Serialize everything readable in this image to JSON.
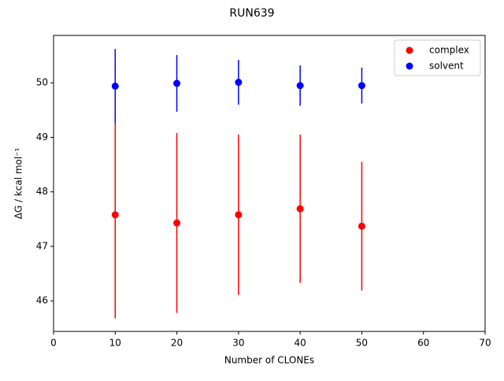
{
  "chart_data": {
    "type": "errorbar-scatter",
    "title": "RUN639",
    "xlabel": "Number of CLONEs",
    "ylabel": "ΔG / kcal mol⁻¹",
    "xlim": [
      0,
      70
    ],
    "xticks": [
      0,
      10,
      20,
      30,
      40,
      50,
      60,
      70
    ],
    "ylim": [
      45.44,
      50.87
    ],
    "yticks": [
      46,
      47,
      48,
      49,
      50
    ],
    "legend": "upper right",
    "series": [
      {
        "name": "complex",
        "color": "#ff0000",
        "x": [
          10,
          20,
          30,
          40,
          50
        ],
        "values": [
          47.58,
          47.43,
          47.58,
          47.69,
          47.37
        ],
        "errors": [
          1.9,
          1.65,
          1.47,
          1.36,
          1.18
        ]
      },
      {
        "name": "solvent",
        "color": "#0000ff",
        "x": [
          10,
          20,
          30,
          40,
          50
        ],
        "values": [
          49.94,
          49.99,
          50.01,
          49.95,
          49.95
        ],
        "errors": [
          0.68,
          0.52,
          0.41,
          0.37,
          0.33
        ]
      }
    ]
  }
}
